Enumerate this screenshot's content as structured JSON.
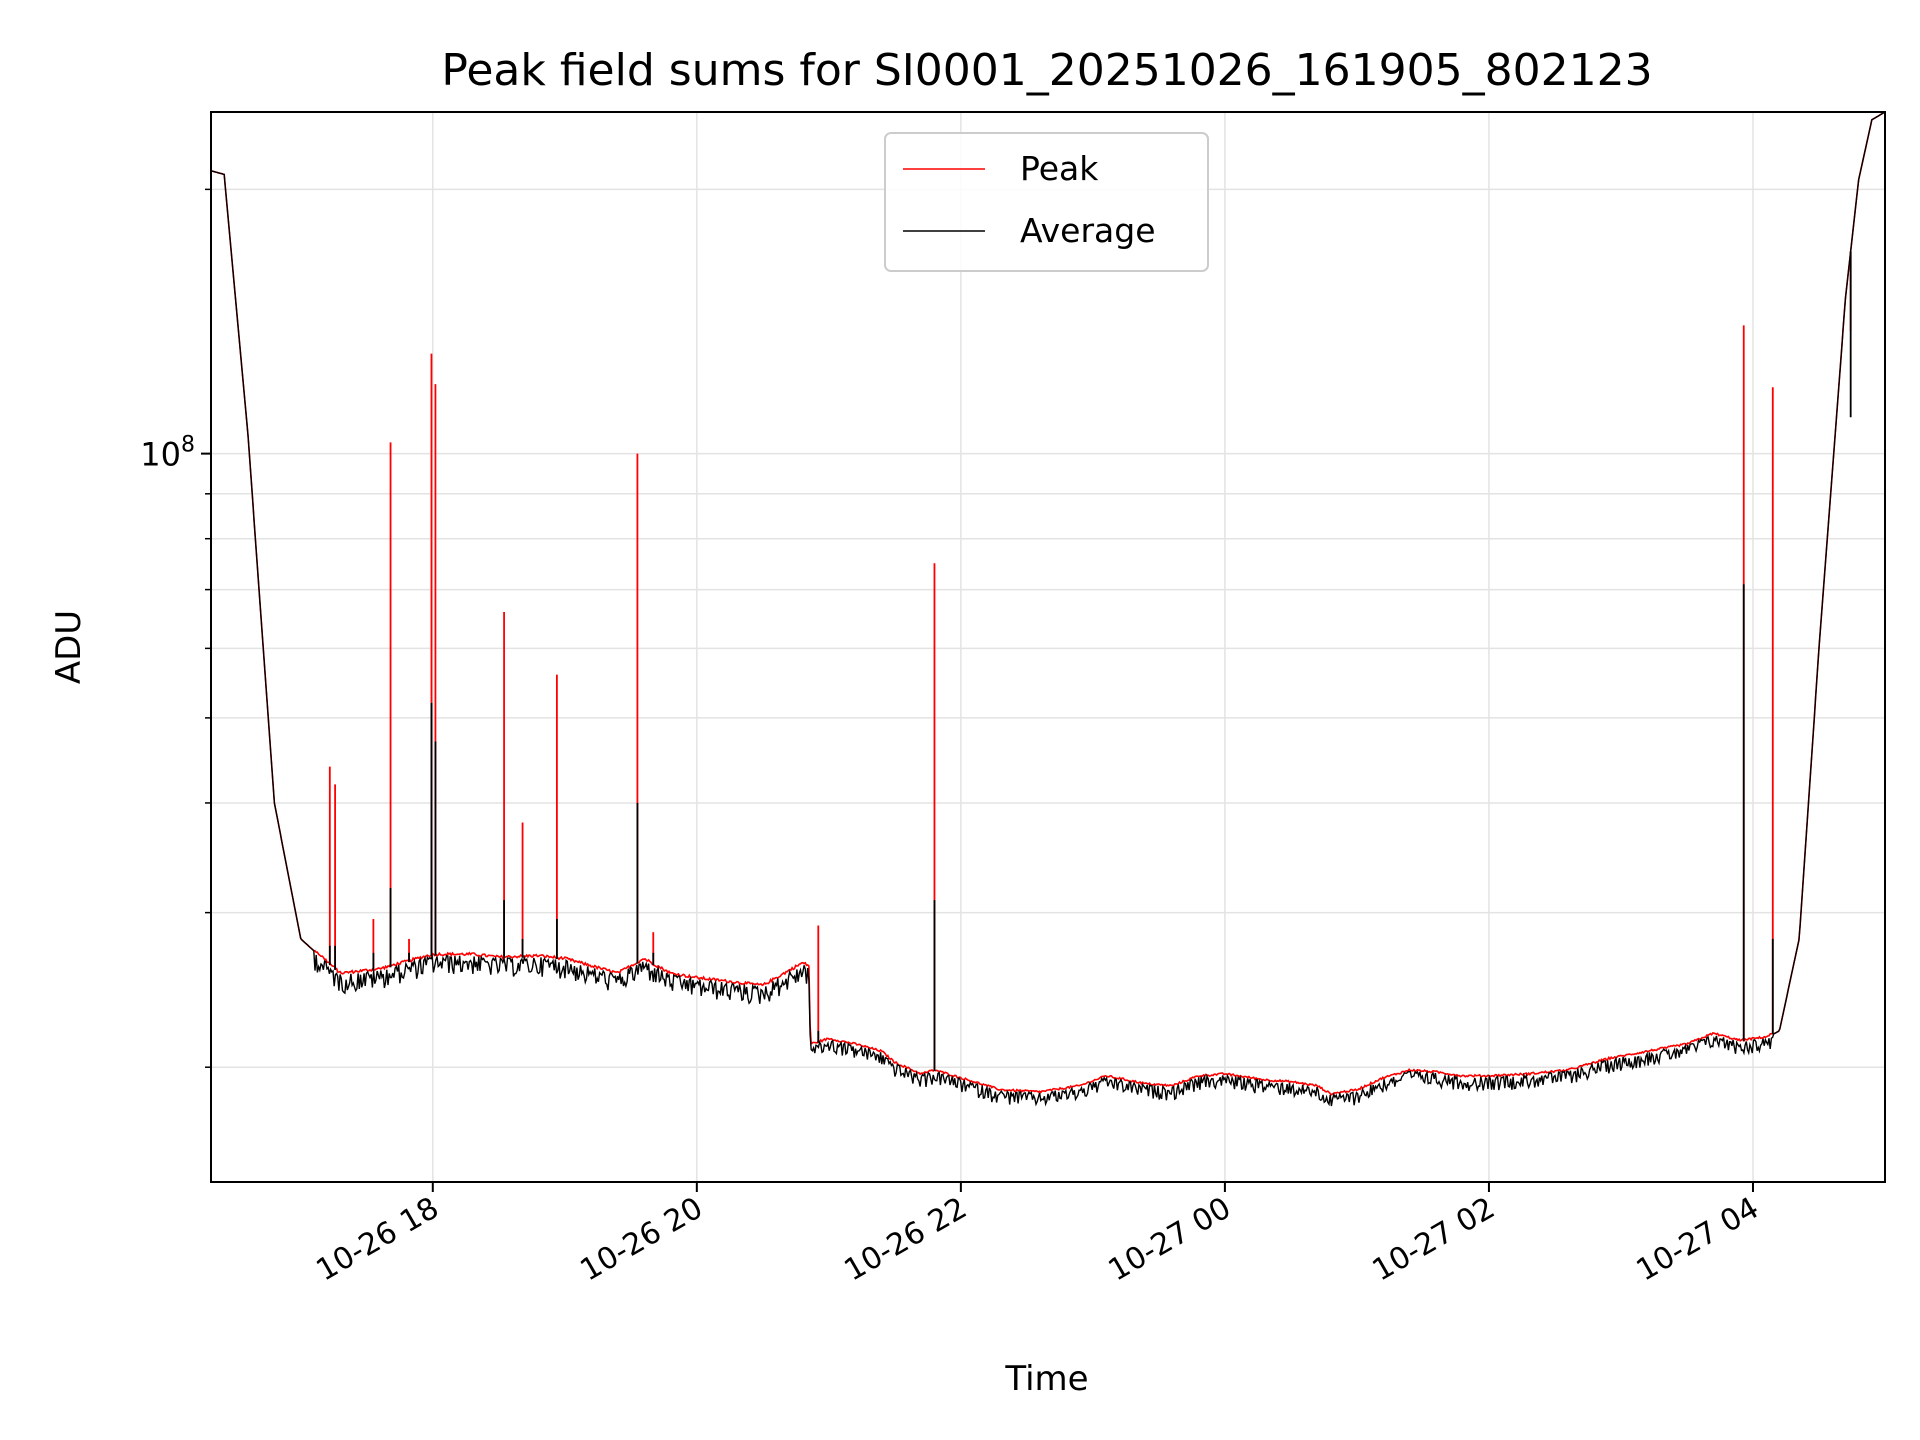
{
  "chart_data": {
    "type": "line",
    "title": "Peak field sums for SI0001_20251026_161905_802123",
    "xlabel": "Time",
    "ylabel": "ADU",
    "yscale": "log",
    "ylim": [
      14800000,
      245000000
    ],
    "xlim_hours": [
      16.32,
      5.0
    ],
    "grid": true,
    "legend_position": "top-center",
    "x_ticks": [
      {
        "hour": 18,
        "label": "10-26 18"
      },
      {
        "hour": 20,
        "label": "10-26 20"
      },
      {
        "hour": 22,
        "label": "10-26 22"
      },
      {
        "hour": 24,
        "label": "10-27 00"
      },
      {
        "hour": 26,
        "label": "10-27 02"
      },
      {
        "hour": 28,
        "label": "10-27 04"
      }
    ],
    "y_ticks": [
      {
        "value": 100000000,
        "base": "10",
        "exp": "8"
      }
    ],
    "y_minor_ticks": [
      20000000,
      30000000,
      40000000,
      50000000,
      60000000,
      70000000,
      80000000,
      90000000,
      200000000
    ],
    "series": [
      {
        "name": "Peak",
        "color": "#ff0000"
      },
      {
        "name": "Average",
        "color": "#000000"
      }
    ],
    "baseline": {
      "hours": [
        16.32,
        16.42,
        16.6,
        16.8,
        17.0,
        17.3,
        17.6,
        17.8,
        18.0,
        18.3,
        18.5,
        18.8,
        19.0,
        19.2,
        19.4,
        19.6,
        19.8,
        20.0,
        20.3,
        20.5,
        20.8,
        20.85,
        20.86,
        21.0,
        21.2,
        21.4,
        21.5,
        21.7,
        21.8,
        22.0,
        22.3,
        22.6,
        22.9,
        23.1,
        23.4,
        23.6,
        23.8,
        24.0,
        24.3,
        24.5,
        24.7,
        24.8,
        25.0,
        25.2,
        25.4,
        25.6,
        25.8,
        26.0,
        26.3,
        26.6,
        26.9,
        27.2,
        27.5,
        27.7,
        27.9,
        28.1,
        28.2,
        28.35,
        28.5,
        28.7,
        28.8,
        28.9,
        29.0
      ],
      "values": [
        210000000,
        208000000,
        105000000,
        40000000,
        28000000,
        25500000,
        25800000,
        26300000,
        26800000,
        26800000,
        26600000,
        26700000,
        26500000,
        26000000,
        25500000,
        26500000,
        25500000,
        25200000,
        24900000,
        24700000,
        26200000,
        26000000,
        21200000,
        21500000,
        21200000,
        20800000,
        20200000,
        19600000,
        19800000,
        19400000,
        18800000,
        18700000,
        19000000,
        19500000,
        19100000,
        19000000,
        19500000,
        19600000,
        19300000,
        19200000,
        19000000,
        18600000,
        18800000,
        19400000,
        19800000,
        19700000,
        19500000,
        19500000,
        19600000,
        19800000,
        20400000,
        20800000,
        21200000,
        21800000,
        21400000,
        21600000,
        22000000,
        28000000,
        60000000,
        150000000,
        205000000,
        240000000,
        245000000
      ]
    },
    "spikes": [
      {
        "hour": 17.22,
        "peak": 44000000,
        "avg": 27500000
      },
      {
        "hour": 17.26,
        "peak": 42000000,
        "avg": 27500000
      },
      {
        "hour": 17.55,
        "peak": 29500000,
        "avg": 27000000
      },
      {
        "hour": 17.68,
        "peak": 103000000,
        "avg": 32000000
      },
      {
        "hour": 17.82,
        "peak": 28000000,
        "avg": 27000000
      },
      {
        "hour": 17.99,
        "peak": 130000000,
        "avg": 52000000
      },
      {
        "hour": 18.02,
        "peak": 120000000,
        "avg": 47000000
      },
      {
        "hour": 18.54,
        "peak": 66000000,
        "avg": 31000000
      },
      {
        "hour": 18.68,
        "peak": 38000000,
        "avg": 28000000
      },
      {
        "hour": 18.94,
        "peak": 56000000,
        "avg": 29500000
      },
      {
        "hour": 19.55,
        "peak": 100000000,
        "avg": 40000000
      },
      {
        "hour": 19.67,
        "peak": 28500000,
        "avg": 27000000
      },
      {
        "hour": 20.92,
        "peak": 29000000,
        "avg": 22000000
      },
      {
        "hour": 21.8,
        "peak": 75000000,
        "avg": 31000000
      },
      {
        "hour": 27.93,
        "peak": 140000000,
        "avg": 71000000
      },
      {
        "hour": 28.15,
        "peak": 119000000,
        "avg": 28000000
      },
      {
        "hour": 28.74,
        "peak": 138000000,
        "avg": 110000000
      }
    ]
  }
}
